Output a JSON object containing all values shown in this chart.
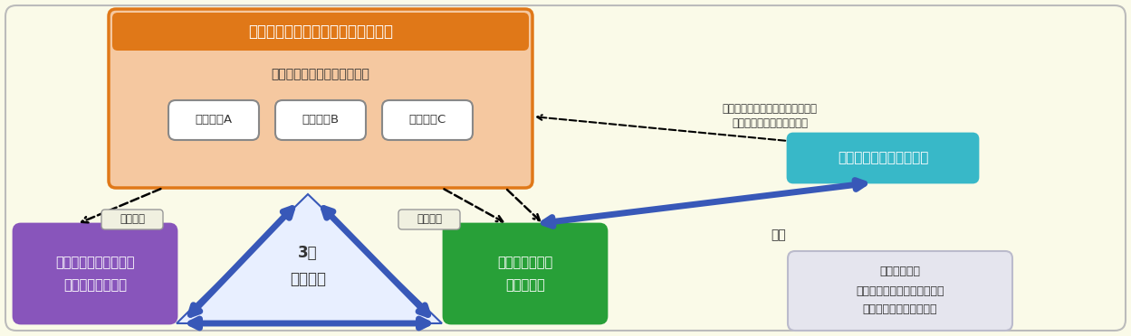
{
  "bg_color": "#FAFAE8",
  "title_text": "宮城・福島・山形県食品産業協議会",
  "title_bg": "#E07818",
  "council_bg": "#F5C8A0",
  "council_border": "#E07818",
  "secretary_text": "事務局：全体コーディネート",
  "company_a": "会員企業A",
  "company_b": "会員企業B",
  "company_c": "会員企業C",
  "company_box_bg": "#FFFFFF",
  "company_box_border": "#888888",
  "techno_text": "（株）東北テクノアーチ",
  "techno_bg": "#38B8C8",
  "hint_line1": "事務局への知財ヒアリング等指導",
  "hint_line2": "会員企業への知財戦略提案",
  "left_box_text": "東北大学未来科学技術\n共同研究センター",
  "left_box_bg": "#8855BB",
  "right_box_text": "東北大学大学院\n農学研究科",
  "right_box_bg": "#28A038",
  "center_text": "3者\n連携協定",
  "triangle_fill": "#E8EFFF",
  "triangle_border": "#3858B8",
  "arrow_color": "#3858B8",
  "tech_support_left": "技術支援",
  "tech_support_right": "技術支援",
  "renkei_text": "連携",
  "support_box_text": "【協力機関】\n宮城県産業技術総合センター\n東経連ビジネスセンター",
  "support_box_bg": "#E5E5EE",
  "support_box_border": "#BBBBCC"
}
